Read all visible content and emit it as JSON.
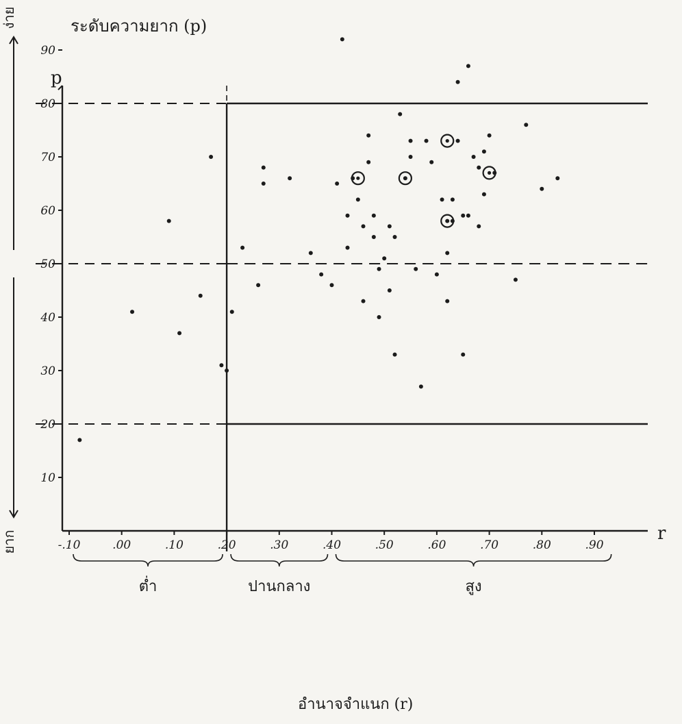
{
  "chart_data": {
    "type": "scatter",
    "title": "ระดับความยาก (p)",
    "xlabel": "อำนาจจำแนก (r)",
    "ylabel": "p",
    "xaxis_letter": "r",
    "xlim": [
      -0.1,
      0.95
    ],
    "ylim": [
      0,
      95
    ],
    "x_ticks": [
      "-.10",
      ".00",
      ".10",
      ".20",
      ".30",
      ".40",
      ".50",
      ".60",
      ".70",
      ".80",
      ".90"
    ],
    "x_tick_values": [
      -0.1,
      0.0,
      0.1,
      0.2,
      0.3,
      0.4,
      0.5,
      0.6,
      0.7,
      0.8,
      0.9
    ],
    "y_ticks": [
      "10",
      "20",
      "30",
      "40",
      "50",
      "60",
      "70",
      "80",
      "90"
    ],
    "y_tick_values": [
      10,
      20,
      30,
      40,
      50,
      60,
      70,
      80,
      90
    ],
    "discrimination_groups": [
      {
        "label": "ต่ำ",
        "range": [
          -0.1,
          0.2
        ]
      },
      {
        "label": "ปานกลาง",
        "range": [
          0.2,
          0.4
        ]
      },
      {
        "label": "สูง",
        "range": [
          0.4,
          0.94
        ]
      }
    ],
    "difficulty_groups": [
      {
        "label": "ง่าย",
        "range": [
          50,
          95
        ]
      },
      {
        "label": "ยาก",
        "range": [
          0,
          50
        ]
      }
    ],
    "reference_lines": {
      "solid_horizontal": [
        80,
        20
      ],
      "dashed_horizontal": [
        80,
        50,
        20
      ],
      "vertical_r": 0.2
    },
    "points": [
      {
        "x": -0.08,
        "y": 17
      },
      {
        "x": 0.02,
        "y": 41
      },
      {
        "x": 0.09,
        "y": 58
      },
      {
        "x": 0.11,
        "y": 37
      },
      {
        "x": 0.15,
        "y": 44
      },
      {
        "x": 0.17,
        "y": 70
      },
      {
        "x": 0.19,
        "y": 31
      },
      {
        "x": 0.2,
        "y": 30
      },
      {
        "x": 0.21,
        "y": 41
      },
      {
        "x": 0.23,
        "y": 53
      },
      {
        "x": 0.26,
        "y": 46
      },
      {
        "x": 0.27,
        "y": 68
      },
      {
        "x": 0.27,
        "y": 65
      },
      {
        "x": 0.32,
        "y": 66
      },
      {
        "x": 0.36,
        "y": 52
      },
      {
        "x": 0.38,
        "y": 48
      },
      {
        "x": 0.4,
        "y": 46
      },
      {
        "x": 0.41,
        "y": 65
      },
      {
        "x": 0.42,
        "y": 92
      },
      {
        "x": 0.43,
        "y": 53
      },
      {
        "x": 0.43,
        "y": 59
      },
      {
        "x": 0.44,
        "y": 66
      },
      {
        "x": 0.45,
        "y": 62
      },
      {
        "x": 0.46,
        "y": 43
      },
      {
        "x": 0.46,
        "y": 57
      },
      {
        "x": 0.47,
        "y": 74
      },
      {
        "x": 0.47,
        "y": 69
      },
      {
        "x": 0.48,
        "y": 59
      },
      {
        "x": 0.48,
        "y": 55
      },
      {
        "x": 0.49,
        "y": 40
      },
      {
        "x": 0.49,
        "y": 49
      },
      {
        "x": 0.5,
        "y": 51
      },
      {
        "x": 0.51,
        "y": 57
      },
      {
        "x": 0.51,
        "y": 45
      },
      {
        "x": 0.52,
        "y": 55
      },
      {
        "x": 0.52,
        "y": 33
      },
      {
        "x": 0.53,
        "y": 78
      },
      {
        "x": 0.54,
        "y": 66
      },
      {
        "x": 0.55,
        "y": 73
      },
      {
        "x": 0.55,
        "y": 70
      },
      {
        "x": 0.56,
        "y": 49
      },
      {
        "x": 0.57,
        "y": 27
      },
      {
        "x": 0.58,
        "y": 73
      },
      {
        "x": 0.59,
        "y": 69
      },
      {
        "x": 0.6,
        "y": 48
      },
      {
        "x": 0.61,
        "y": 62
      },
      {
        "x": 0.62,
        "y": 58
      },
      {
        "x": 0.62,
        "y": 52
      },
      {
        "x": 0.62,
        "y": 43
      },
      {
        "x": 0.63,
        "y": 62
      },
      {
        "x": 0.63,
        "y": 58
      },
      {
        "x": 0.64,
        "y": 73
      },
      {
        "x": 0.64,
        "y": 84
      },
      {
        "x": 0.65,
        "y": 59
      },
      {
        "x": 0.65,
        "y": 33
      },
      {
        "x": 0.66,
        "y": 87
      },
      {
        "x": 0.66,
        "y": 59
      },
      {
        "x": 0.67,
        "y": 70
      },
      {
        "x": 0.68,
        "y": 68
      },
      {
        "x": 0.68,
        "y": 57
      },
      {
        "x": 0.69,
        "y": 71
      },
      {
        "x": 0.69,
        "y": 63
      },
      {
        "x": 0.7,
        "y": 74
      },
      {
        "x": 0.71,
        "y": 67
      },
      {
        "x": 0.75,
        "y": 47
      },
      {
        "x": 0.77,
        "y": 76
      },
      {
        "x": 0.8,
        "y": 64
      },
      {
        "x": 0.83,
        "y": 66
      },
      {
        "x": 0.45,
        "y": 66,
        "circled": true
      },
      {
        "x": 0.54,
        "y": 66,
        "circled": true
      },
      {
        "x": 0.62,
        "y": 73,
        "circled": true
      },
      {
        "x": 0.7,
        "y": 67,
        "circled": true
      },
      {
        "x": 0.62,
        "y": 58,
        "circled": true
      }
    ]
  }
}
